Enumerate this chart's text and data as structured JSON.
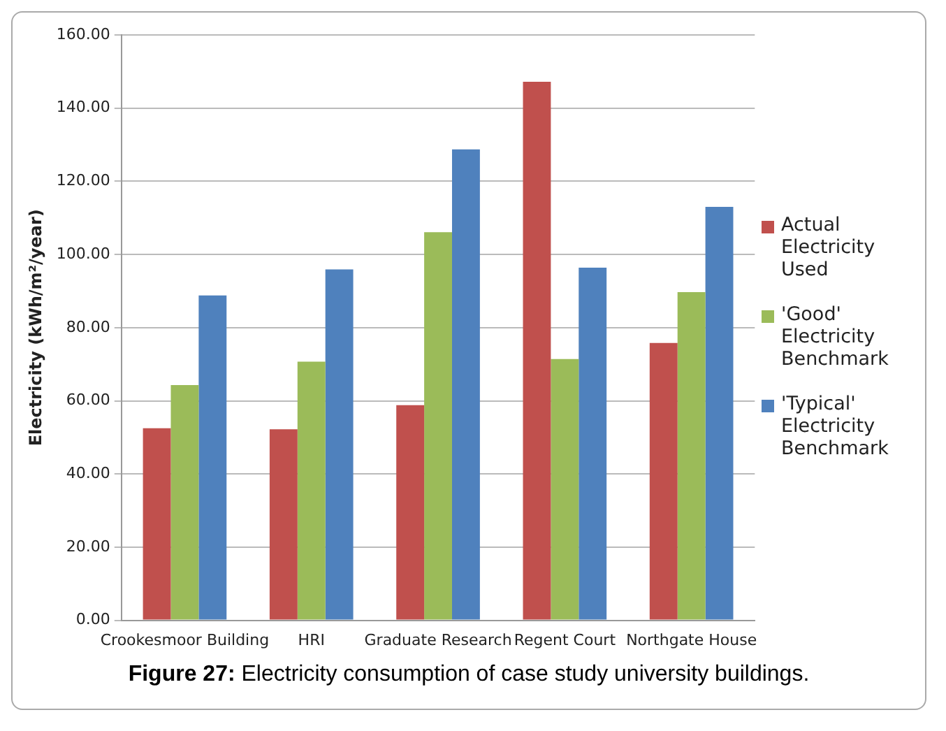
{
  "chart_data": {
    "type": "bar",
    "ylabel": "Electricity (kWh/m²/year)",
    "annotations": [
      "Figure 27: Electricity consumption of case study university buildings."
    ],
    "categories": [
      "Crookesmoor Building",
      "HRI",
      "Graduate Research",
      "Regent Court",
      "Northgate House"
    ],
    "series": [
      {
        "name": "Actual Electricity Used",
        "color": "#c0504d",
        "values": [
          52.5,
          52.2,
          58.8,
          147.2,
          75.8
        ]
      },
      {
        "name": "'Good' Electricity Benchmark",
        "color": "#9bbb59",
        "values": [
          64.3,
          70.7,
          106.1,
          71.4,
          89.7
        ]
      },
      {
        "name": "'Typical' Electricity Benchmark",
        "color": "#4f81bd",
        "values": [
          88.8,
          95.9,
          128.7,
          96.4,
          113.0
        ]
      }
    ],
    "ylim": [
      0,
      160
    ],
    "yticks": [
      {
        "value": 0,
        "label": "0.00"
      },
      {
        "value": 20,
        "label": "20.00"
      },
      {
        "value": 40,
        "label": "40.00"
      },
      {
        "value": 60,
        "label": "60.00"
      },
      {
        "value": 80,
        "label": "80.00"
      },
      {
        "value": 100,
        "label": "100.00"
      },
      {
        "value": 120,
        "label": "120.00"
      },
      {
        "value": 140,
        "label": "140.00"
      },
      {
        "value": 160,
        "label": "160.00"
      }
    ],
    "grid": "y",
    "legend": "right"
  }
}
